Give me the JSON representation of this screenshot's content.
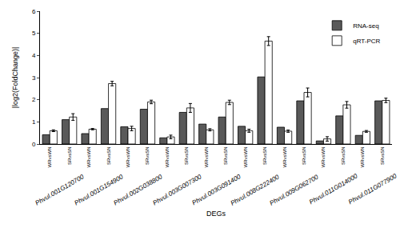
{
  "chart_data": {
    "type": "bar",
    "x_label": "DEGs",
    "y_label": "|log2(FoldChange)|",
    "groups": [
      "Phvul.001G120700",
      "Phvul.001G154900",
      "Phvul.002G038800",
      "Phvul.003G007300",
      "Phvul.003G091400",
      "Phvul.008G222400",
      "Phvul.009G062700",
      "Phvul.011G014000",
      "Phvul.011G077900"
    ],
    "categories": [
      "WRvsWN",
      "SRvsSN",
      "WRvsWN",
      "SRvsSN",
      "WRvsWN",
      "SRvsSN",
      "WRvsWN",
      "SRvsSN",
      "WRvsWN",
      "SRvsSN",
      "WRvsWN",
      "SRvsSN",
      "WRvsWN",
      "SRvsSN",
      "WRvsWN",
      "SRvsSN",
      "WRvsWN",
      "SRvsSN"
    ],
    "series": [
      {
        "name": "RNA-seq",
        "color": "#595959",
        "values": [
          0.42,
          1.1,
          0.47,
          1.6,
          0.78,
          1.57,
          0.28,
          1.43,
          0.9,
          1.22,
          0.8,
          3.03,
          0.76,
          1.95,
          0.14,
          1.27,
          0.39,
          1.95
        ]
      },
      {
        "name": "qRT-PCR",
        "color": "#ffffff",
        "values": [
          0.6,
          1.22,
          0.67,
          2.73,
          0.7,
          1.9,
          0.32,
          1.63,
          0.64,
          1.88,
          0.6,
          4.65,
          0.58,
          2.33,
          0.23,
          1.77,
          0.57,
          1.97
        ],
        "errors": [
          0.04,
          0.15,
          0.03,
          0.1,
          0.1,
          0.08,
          0.08,
          0.2,
          0.05,
          0.1,
          0.07,
          0.2,
          0.05,
          0.2,
          0.1,
          0.15,
          0.04,
          0.1
        ]
      }
    ],
    "ylim": [
      0,
      6
    ],
    "yticks": [
      0,
      1,
      2,
      3,
      4,
      5,
      6
    ],
    "grid": false,
    "legend": "upper right"
  }
}
